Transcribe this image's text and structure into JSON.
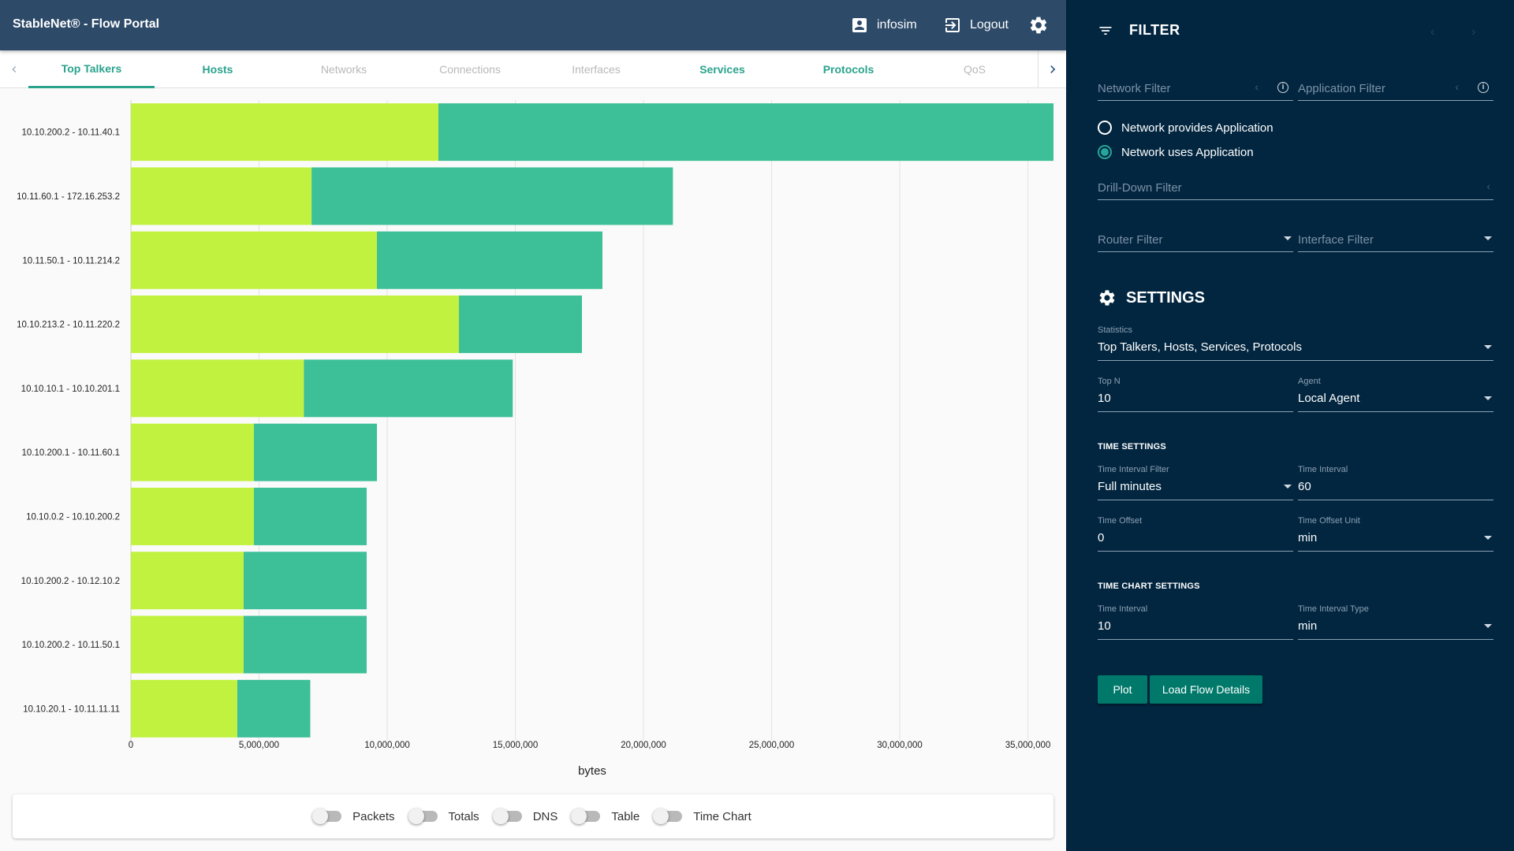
{
  "header": {
    "title": "StableNet® - Flow Portal",
    "user": "infosim",
    "logout": "Logout"
  },
  "tabs": [
    {
      "label": "Top Talkers",
      "state": "active"
    },
    {
      "label": "Hosts",
      "state": "enabled"
    },
    {
      "label": "Networks",
      "state": "disabled"
    },
    {
      "label": "Connections",
      "state": "disabled"
    },
    {
      "label": "Interfaces",
      "state": "disabled"
    },
    {
      "label": "Services",
      "state": "enabled"
    },
    {
      "label": "Protocols",
      "state": "enabled"
    },
    {
      "label": "QoS",
      "state": "disabled"
    }
  ],
  "chart_data": {
    "type": "bar",
    "orientation": "horizontal",
    "stacked": true,
    "categories": [
      "10.10.200.2 - 10.11.40.1",
      "10.11.60.1 - 172.16.253.2",
      "10.11.50.1 - 10.11.214.2",
      "10.10.213.2 - 10.11.220.2",
      "10.10.10.1 - 10.10.201.1",
      "10.10.200.1 - 10.11.60.1",
      "10.10.0.2 - 10.10.200.2",
      "10.10.200.2 - 10.12.10.2",
      "10.10.200.2 - 10.11.50.1",
      "10.10.20.1 - 10.11.11.11"
    ],
    "series": [
      {
        "color": "#c2f240",
        "values": [
          12000000,
          7050000,
          9600000,
          12800000,
          6750000,
          4800000,
          4800000,
          4400000,
          4400000,
          4150000
        ]
      },
      {
        "color": "#3dbf98",
        "values": [
          24000000,
          14100000,
          8800000,
          4800000,
          8150000,
          4800000,
          4400000,
          4800000,
          4800000,
          2850000
        ]
      }
    ],
    "xlim": [
      0,
      36000000
    ],
    "xticks": [
      0,
      5000000,
      10000000,
      15000000,
      20000000,
      25000000,
      30000000,
      35000000
    ],
    "xtick_labels": [
      "0",
      "5,000,000",
      "10,000,000",
      "15,000,000",
      "20,000,000",
      "25,000,000",
      "30,000,000",
      "35,000,000"
    ],
    "xlabel": "bytes",
    "grid": "vertical"
  },
  "toggles": [
    {
      "label": "Packets",
      "on": false
    },
    {
      "label": "Totals",
      "on": false
    },
    {
      "label": "DNS",
      "on": false
    },
    {
      "label": "Table",
      "on": false
    },
    {
      "label": "Time Chart",
      "on": false
    }
  ],
  "panel": {
    "filter_title": "FILTER",
    "network_filter": "Network Filter",
    "application_filter": "Application Filter",
    "radio_provides": "Network provides Application",
    "radio_uses": "Network uses Application",
    "drilldown_filter": "Drill-Down Filter",
    "router_filter": "Router Filter",
    "interface_filter": "Interface Filter",
    "settings_title": "SETTINGS",
    "statistics_caption": "Statistics",
    "statistics_value": "Top Talkers, Hosts, Services, Protocols",
    "topn_caption": "Top N",
    "topn_value": "10",
    "agent_caption": "Agent",
    "agent_value": "Local Agent",
    "time_settings": "TIME SETTINGS",
    "tif_caption": "Time Interval Filter",
    "tif_value": "Full minutes",
    "ti_caption": "Time Interval",
    "ti_value": "60",
    "offset_caption": "Time Offset",
    "offset_value": "0",
    "offset_unit_caption": "Time Offset Unit",
    "offset_unit_value": "min",
    "time_chart_settings": "TIME CHART SETTINGS",
    "tc_interval_caption": "Time Interval",
    "tc_interval_value": "10",
    "tc_type_caption": "Time Interval Type",
    "tc_type_value": "min",
    "plot_button": "Plot",
    "load_button": "Load Flow Details"
  }
}
